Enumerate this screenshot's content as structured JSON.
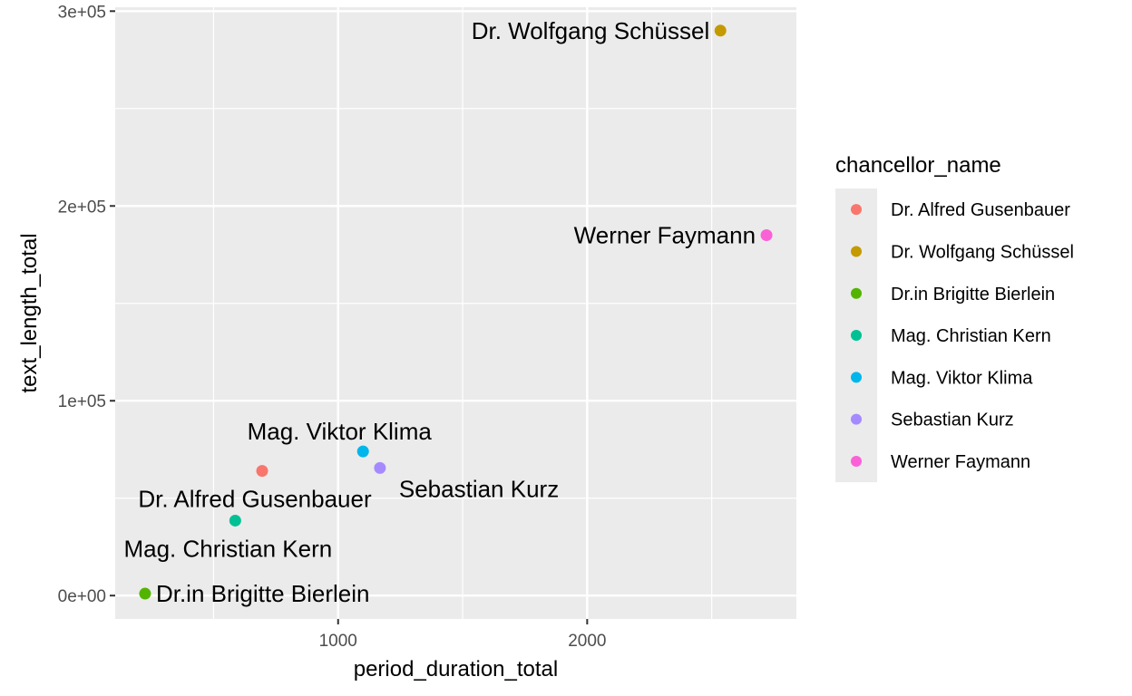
{
  "chart_data": {
    "type": "scatter",
    "xlabel": "period_duration_total",
    "ylabel": "text_length_total",
    "xlim": [
      105,
      2840
    ],
    "ylim": [
      -12000,
      302000
    ],
    "x_ticks": [
      {
        "value": 1000,
        "label": "1000"
      },
      {
        "value": 2000,
        "label": "2000"
      }
    ],
    "x_minor": [
      500,
      1500,
      2500
    ],
    "y_ticks": [
      {
        "value": 0,
        "label": "0e+00"
      },
      {
        "value": 100000,
        "label": "1e+05"
      },
      {
        "value": 200000,
        "label": "2e+05"
      },
      {
        "value": 300000,
        "label": "3e+05"
      }
    ],
    "y_minor": [
      50000,
      150000,
      250000
    ],
    "grid": true,
    "legend": {
      "title": "chancellor_name",
      "placement": "right",
      "entries": [
        {
          "name": "Dr. Alfred Gusenbauer",
          "color": "#F8766D"
        },
        {
          "name": "Dr. Wolfgang Schüssel",
          "color": "#C49A00"
        },
        {
          "name": "Dr.in Brigitte Bierlein",
          "color": "#53B400"
        },
        {
          "name": "Mag. Christian Kern",
          "color": "#00C094"
        },
        {
          "name": "Mag. Viktor Klima",
          "color": "#00B6EB"
        },
        {
          "name": "Sebastian Kurz",
          "color": "#A58AFF"
        },
        {
          "name": "Werner Faymann",
          "color": "#FB61D7"
        }
      ]
    },
    "points": [
      {
        "name": "Dr. Alfred Gusenbauer",
        "x": 695,
        "y": 64000,
        "color": "#F8766D",
        "label_anchor": "middle",
        "label_position": "below"
      },
      {
        "name": "Dr. Wolfgang Schüssel",
        "x": 2535,
        "y": 290000,
        "color": "#C49A00",
        "label_anchor": "end",
        "label_position": "left"
      },
      {
        "name": "Dr.in Brigitte Bierlein",
        "x": 225,
        "y": 1000,
        "color": "#53B400",
        "label_anchor": "start",
        "label_position": "right"
      },
      {
        "name": "Mag. Christian Kern",
        "x": 587,
        "y": 38500,
        "color": "#00C094",
        "label_anchor": "middle",
        "label_position": "below"
      },
      {
        "name": "Mag. Viktor Klima",
        "x": 1100,
        "y": 74000,
        "color": "#00B6EB",
        "label_anchor": "middle",
        "label_position": "above-left"
      },
      {
        "name": "Sebastian Kurz",
        "x": 1168,
        "y": 65500,
        "color": "#A58AFF",
        "label_anchor": "start",
        "label_position": "below-right"
      },
      {
        "name": "Werner Faymann",
        "x": 2720,
        "y": 185000,
        "color": "#FB61D7",
        "label_anchor": "end",
        "label_position": "left"
      }
    ]
  }
}
